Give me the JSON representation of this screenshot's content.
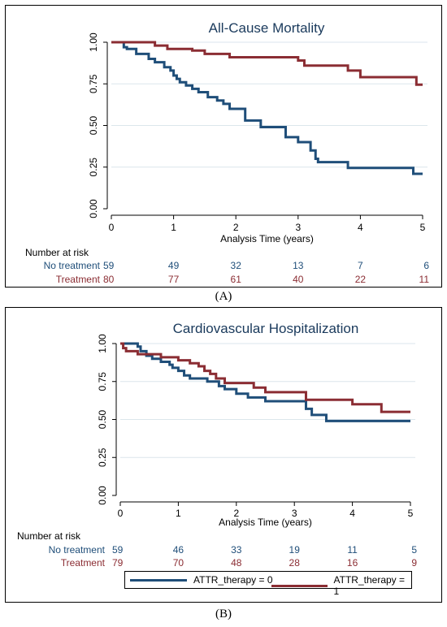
{
  "colors": {
    "no_treatment": "#1f4e79",
    "treatment": "#8b2d33",
    "grid": "#dbe6ec"
  },
  "chart_data": [
    {
      "type": "line",
      "step": true,
      "panel_label": "(A)",
      "title": "All-Cause Mortality",
      "xlabel": "Analysis Time (years)",
      "ylabel": "",
      "xlim": [
        0,
        5
      ],
      "ylim": [
        0,
        1
      ],
      "xticks": [
        "0",
        "1",
        "2",
        "3",
        "4",
        "5"
      ],
      "yticks": [
        "0.00",
        "0.25",
        "0.50",
        "0.75",
        "1.00"
      ],
      "grid": true,
      "series": [
        {
          "color": "#1f4e79",
          "x": [
            0,
            0.2,
            0.25,
            0.4,
            0.6,
            0.7,
            0.85,
            0.95,
            1.0,
            1.05,
            1.1,
            1.2,
            1.3,
            1.4,
            1.55,
            1.7,
            1.8,
            1.9,
            2.15,
            2.4,
            2.8,
            3.0,
            3.2,
            3.28,
            3.32,
            3.8,
            4.85,
            5.0
          ],
          "y": [
            1.0,
            0.97,
            0.96,
            0.93,
            0.9,
            0.88,
            0.85,
            0.83,
            0.8,
            0.78,
            0.76,
            0.74,
            0.72,
            0.7,
            0.67,
            0.65,
            0.63,
            0.6,
            0.53,
            0.49,
            0.43,
            0.4,
            0.35,
            0.3,
            0.28,
            0.245,
            0.21,
            0.21
          ]
        },
        {
          "color": "#8b2d33",
          "x": [
            0,
            0.7,
            0.9,
            1.3,
            1.5,
            1.9,
            3.0,
            3.1,
            3.8,
            4.0,
            4.9,
            5.0
          ],
          "y": [
            1.0,
            0.98,
            0.96,
            0.95,
            0.93,
            0.91,
            0.89,
            0.86,
            0.83,
            0.79,
            0.745,
            0.745
          ]
        }
      ],
      "risk_table": {
        "header": "Number at risk",
        "times": [
          0,
          1,
          2,
          3,
          4,
          5
        ],
        "rows": [
          {
            "label": "No treatment",
            "values": [
              "59",
              "49",
              "32",
              "13",
              "7",
              "6"
            ]
          },
          {
            "label": "Treatment",
            "values": [
              "80",
              "77",
              "61",
              "40",
              "22",
              "11"
            ]
          }
        ]
      }
    },
    {
      "type": "line",
      "step": true,
      "panel_label": "(B)",
      "title": "Cardiovascular Hospitalization",
      "xlabel": "Analysis Time (years)",
      "ylabel": "",
      "xlim": [
        0,
        5
      ],
      "ylim": [
        0,
        1
      ],
      "xticks": [
        "0",
        "1",
        "2",
        "3",
        "4",
        "5"
      ],
      "yticks": [
        "0.00",
        "0.25",
        "0.50",
        "0.75",
        "1.00"
      ],
      "grid": true,
      "series": [
        {
          "color": "#1f4e79",
          "x": [
            0,
            0.3,
            0.35,
            0.45,
            0.55,
            0.7,
            0.85,
            0.9,
            1.0,
            1.1,
            1.2,
            1.5,
            1.7,
            1.8,
            2.0,
            2.2,
            2.5,
            3.2,
            3.3,
            3.55,
            5.0
          ],
          "y": [
            1.0,
            0.98,
            0.95,
            0.92,
            0.9,
            0.88,
            0.86,
            0.84,
            0.82,
            0.79,
            0.77,
            0.75,
            0.72,
            0.7,
            0.67,
            0.645,
            0.62,
            0.57,
            0.53,
            0.49,
            0.49
          ]
        },
        {
          "color": "#8b2d33",
          "x": [
            0,
            0.05,
            0.1,
            0.3,
            0.7,
            1.0,
            1.2,
            1.35,
            1.45,
            1.55,
            1.65,
            1.8,
            2.3,
            2.5,
            3.2,
            4.0,
            4.5,
            5.0
          ],
          "y": [
            1.0,
            0.97,
            0.95,
            0.93,
            0.91,
            0.89,
            0.87,
            0.85,
            0.82,
            0.8,
            0.77,
            0.74,
            0.71,
            0.68,
            0.63,
            0.6,
            0.55,
            0.55
          ]
        }
      ],
      "risk_table": {
        "header": "Number at risk",
        "times": [
          0,
          1,
          2,
          3,
          4,
          5
        ],
        "rows": [
          {
            "label": "No treatment",
            "values": [
              "59",
              "46",
              "33",
              "19",
              "11",
              "5"
            ]
          },
          {
            "label": "Treatment",
            "values": [
              "79",
              "70",
              "48",
              "28",
              "16",
              "9"
            ]
          }
        ]
      },
      "legend": {
        "position": "bottom",
        "entries": [
          {
            "label": "ATTR_therapy = 0",
            "color": "#1f4e79"
          },
          {
            "label": "ATTR_therapy = 1",
            "color": "#8b2d33"
          }
        ]
      }
    }
  ]
}
